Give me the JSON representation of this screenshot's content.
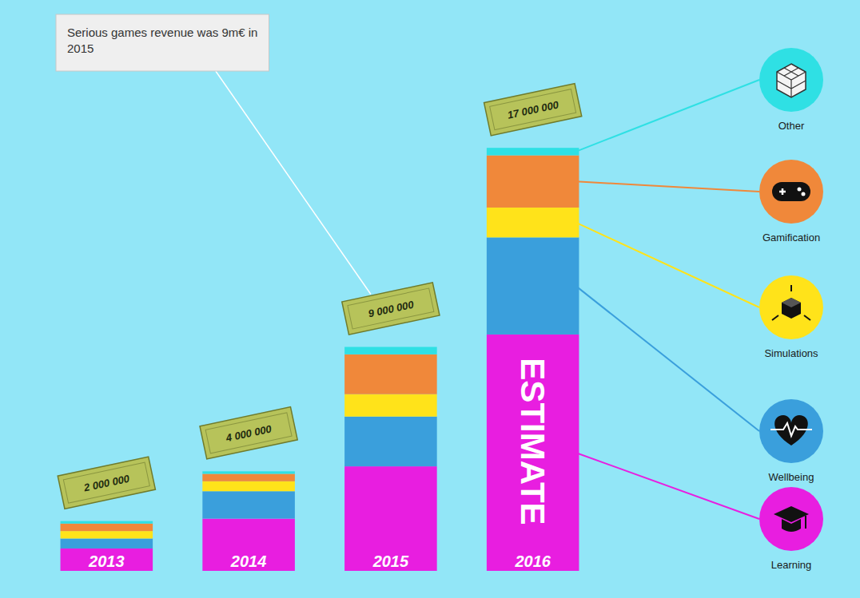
{
  "chart_data": {
    "type": "bar",
    "stacked": true,
    "categories": [
      "2013",
      "2014",
      "2015",
      "2016"
    ],
    "series": [
      {
        "name": "Learning",
        "color": "#e81ee0",
        "values": [
          900000,
          2100000,
          4200000,
          9500000
        ]
      },
      {
        "name": "Wellbeing",
        "color": "#3a9fdc",
        "values": [
          400000,
          1100000,
          2000000,
          3900000
        ]
      },
      {
        "name": "Simulations",
        "color": "#ffe31a",
        "values": [
          300000,
          400000,
          900000,
          1200000
        ]
      },
      {
        "name": "Gamification",
        "color": "#f0883a",
        "values": [
          300000,
          300000,
          1600000,
          2100000
        ]
      },
      {
        "name": "Other",
        "color": "#2fe0e4",
        "values": [
          100000,
          100000,
          300000,
          300000
        ]
      }
    ],
    "totals": [
      2000000,
      4000000,
      9000000,
      17000000
    ],
    "total_labels": [
      "2 000 000",
      "4 000 000",
      "9 000 000",
      "17 000 000"
    ],
    "ylim": [
      0,
      18000000
    ],
    "tick_labels": false,
    "legend": "right",
    "annotations": [
      {
        "text": "Serious games revenue was 9m€ in 2015",
        "x": "2015"
      },
      {
        "text": "ESTIMATE",
        "x": "2016"
      }
    ]
  }
}
